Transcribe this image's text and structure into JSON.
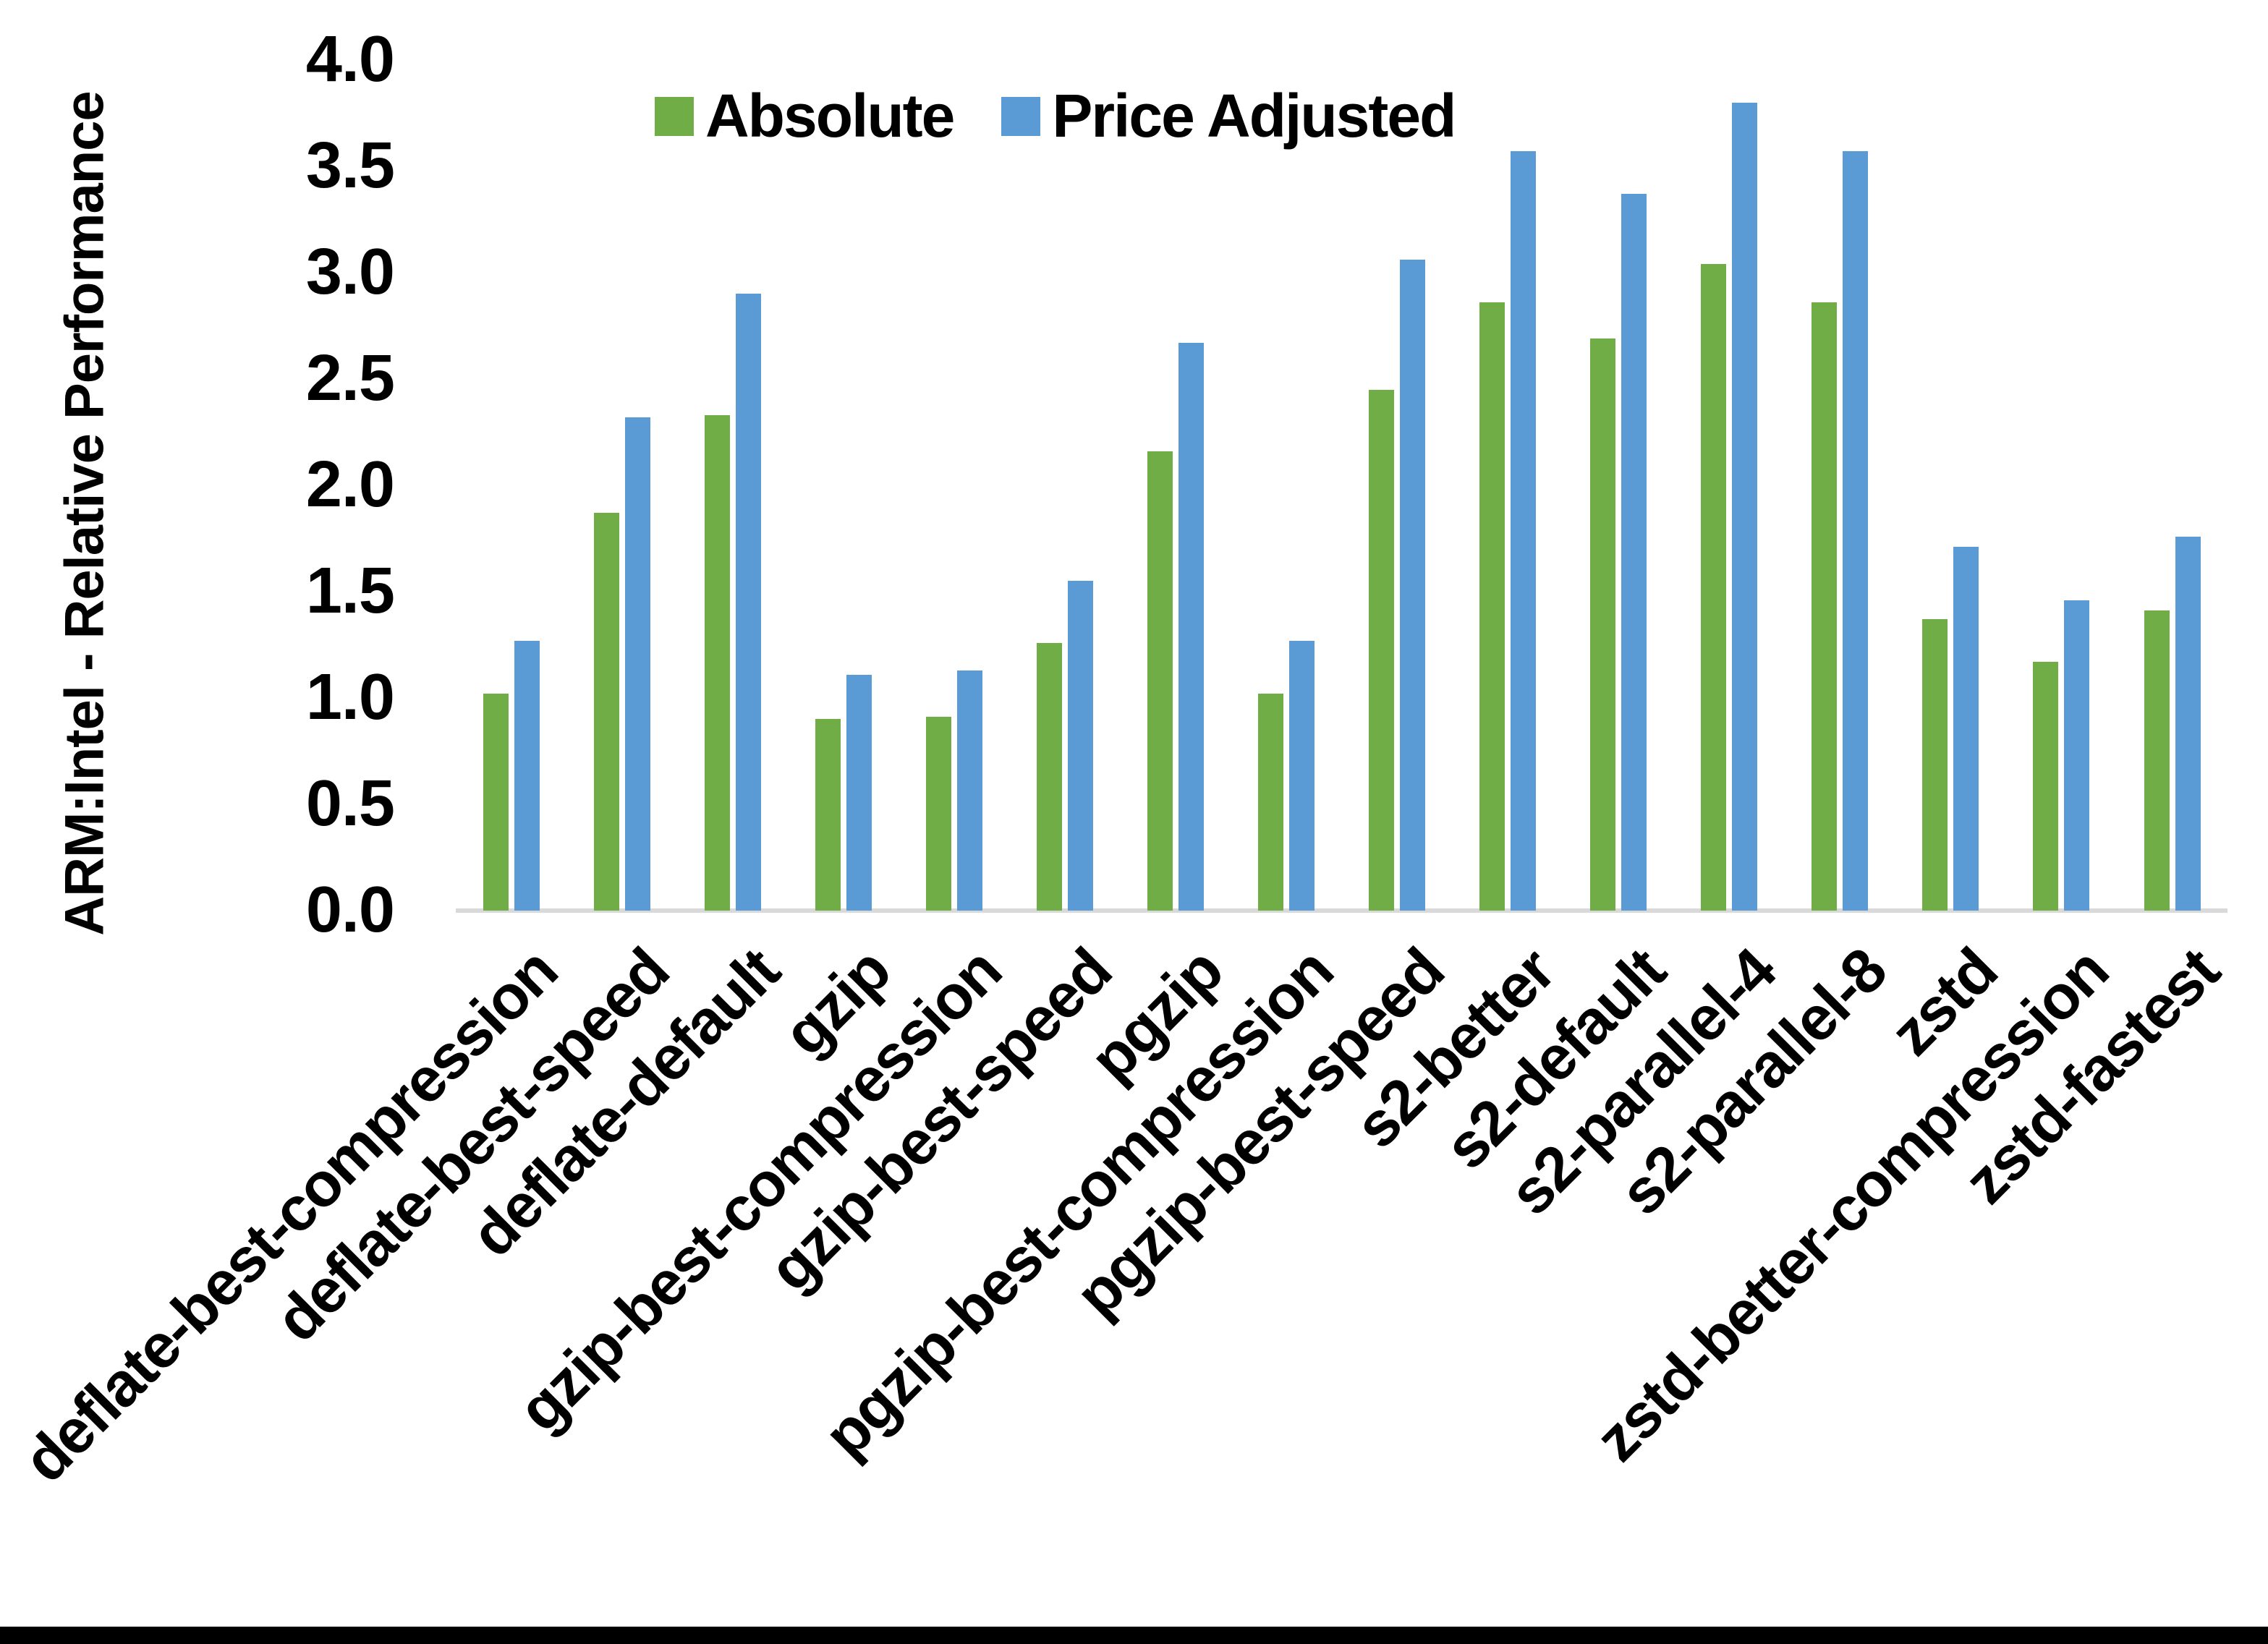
{
  "chart_data": {
    "type": "bar",
    "title": "",
    "xlabel": "",
    "ylabel": "ARM:Intel - Relative Performance",
    "ylim": [
      0.0,
      4.0
    ],
    "ytick_step": 0.5,
    "yticks": [
      "0.0",
      "0.5",
      "1.0",
      "1.5",
      "2.0",
      "2.5",
      "3.0",
      "3.5",
      "4.0"
    ],
    "grid": "off",
    "legend_position": "top-center",
    "background": "#FFFFFF",
    "text_color": "#000000",
    "axis_line_color": "#D9D9D9",
    "bottom_edge_color": "#000000",
    "categories": [
      "deflate-best-compression",
      "deflate-best-speed",
      "deflate-default",
      "gzip",
      "gzip-best-compression",
      "gzip-best-speed",
      "pgzip",
      "pgzip-best-compression",
      "pgzip-best-speed",
      "s2-better",
      "s2-default",
      "s2-parallel-4",
      "s2-parallel-8",
      "zstd",
      "zstd-better-compression",
      "zstd-fastest"
    ],
    "series": [
      {
        "name": "Absolute",
        "color": "#70AD47",
        "values": [
          1.02,
          1.87,
          2.33,
          0.9,
          0.91,
          1.26,
          2.16,
          1.02,
          2.45,
          2.86,
          2.69,
          3.04,
          2.86,
          1.37,
          1.17,
          1.41
        ]
      },
      {
        "name": "Price Adjusted",
        "color": "#5B9BD5",
        "values": [
          1.27,
          2.32,
          2.9,
          1.11,
          1.13,
          1.55,
          2.67,
          1.27,
          3.06,
          3.57,
          3.37,
          3.8,
          3.57,
          1.71,
          1.46,
          1.76
        ]
      }
    ]
  }
}
